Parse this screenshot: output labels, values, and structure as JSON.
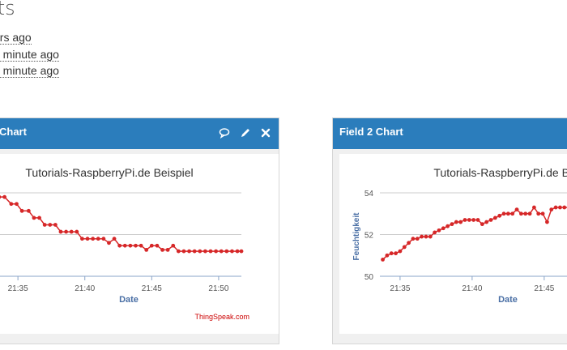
{
  "page": {
    "heading": "ats",
    "stats": [
      "urs ago",
      "a minute ago",
      "a minute ago"
    ]
  },
  "panel1": {
    "title": "Chart",
    "chart_title": "Tutorials-RaspberryPi.de Beispiel",
    "xlabel": "Date",
    "credit": "ThingSpeak.com",
    "icons": [
      "comment-icon",
      "pencil-icon",
      "close-icon"
    ]
  },
  "panel2": {
    "title": "Field 2 Chart",
    "chart_title": "Tutorials-RaspberryPi.de Beispiel",
    "xlabel": "Date",
    "ylabel": "Feuchtigkeit"
  },
  "colors": {
    "header": "#2b7dbc",
    "line": "#d62728",
    "axis_label": "#4a6fa5"
  },
  "chart_data": [
    {
      "type": "line",
      "title": "Tutorials-RaspberryPi.de Beispiel",
      "xlabel": "Date",
      "ylabel": "",
      "x_ticks": [
        "21:35",
        "21:40",
        "21:45",
        "21:50"
      ],
      "x_tick_minutes": [
        35,
        40,
        45,
        50
      ],
      "x_range_minutes": [
        33.6,
        51.7
      ],
      "y_range": [
        0,
        3
      ],
      "grid": true,
      "series": [
        {
          "x_minutes": [
            33.6,
            34.0,
            34.5,
            34.9,
            35.3,
            35.8,
            36.2,
            36.6,
            37.0,
            37.4,
            37.8,
            38.2,
            38.6,
            39.0,
            39.4,
            39.8,
            40.2,
            40.6,
            41.0,
            41.4,
            41.8,
            42.2,
            42.6,
            43.0,
            43.4,
            43.8,
            44.2,
            44.6,
            45.0,
            45.4,
            45.8,
            46.2,
            46.6,
            47.0,
            47.4,
            47.8,
            48.2,
            48.6,
            49.0,
            49.4,
            49.8,
            50.2,
            50.6,
            51.0,
            51.4,
            51.7
          ],
          "values": [
            2.85,
            2.85,
            2.6,
            2.6,
            2.35,
            2.35,
            2.1,
            2.1,
            1.85,
            1.85,
            1.85,
            1.6,
            1.6,
            1.6,
            1.6,
            1.35,
            1.35,
            1.35,
            1.35,
            1.35,
            1.2,
            1.35,
            1.1,
            1.1,
            1.1,
            1.1,
            1.1,
            0.95,
            1.1,
            1.1,
            0.95,
            0.95,
            1.1,
            0.9,
            0.9,
            0.9,
            0.9,
            0.9,
            0.9,
            0.9,
            0.9,
            0.9,
            0.9,
            0.9,
            0.9,
            0.9
          ]
        }
      ]
    },
    {
      "type": "line",
      "title": "Tutorials-RaspberryPi.de Beispiel",
      "xlabel": "Date",
      "ylabel": "Feuchtigkeit",
      "x_ticks": [
        "21:35",
        "21:40",
        "21:45"
      ],
      "x_tick_minutes": [
        35,
        40,
        45
      ],
      "y_ticks": [
        "54",
        "52",
        "50"
      ],
      "y_tick_values": [
        54,
        52,
        50
      ],
      "x_range_minutes": [
        33.6,
        47.2
      ],
      "y_range": [
        50,
        54
      ],
      "grid": true,
      "series": [
        {
          "x_minutes": [
            33.8,
            34.1,
            34.4,
            34.7,
            35.0,
            35.3,
            35.6,
            35.9,
            36.2,
            36.5,
            36.8,
            37.1,
            37.4,
            37.7,
            38.0,
            38.3,
            38.6,
            38.9,
            39.2,
            39.5,
            39.8,
            40.1,
            40.4,
            40.7,
            41.0,
            41.3,
            41.6,
            41.9,
            42.2,
            42.5,
            42.8,
            43.1,
            43.4,
            43.7,
            44.0,
            44.3,
            44.6,
            44.9,
            45.2,
            45.5,
            45.8,
            46.1,
            46.4,
            46.7,
            47.0
          ],
          "values": [
            50.8,
            51.0,
            51.1,
            51.1,
            51.2,
            51.4,
            51.6,
            51.8,
            51.8,
            51.9,
            51.9,
            51.9,
            52.1,
            52.2,
            52.3,
            52.4,
            52.5,
            52.6,
            52.6,
            52.7,
            52.7,
            52.7,
            52.7,
            52.5,
            52.6,
            52.7,
            52.8,
            52.9,
            53.0,
            53.0,
            53.0,
            53.2,
            53.0,
            53.0,
            53.0,
            53.3,
            53.0,
            53.0,
            52.6,
            53.2,
            53.3,
            53.3,
            53.3,
            53.3,
            53.3
          ]
        }
      ]
    }
  ]
}
